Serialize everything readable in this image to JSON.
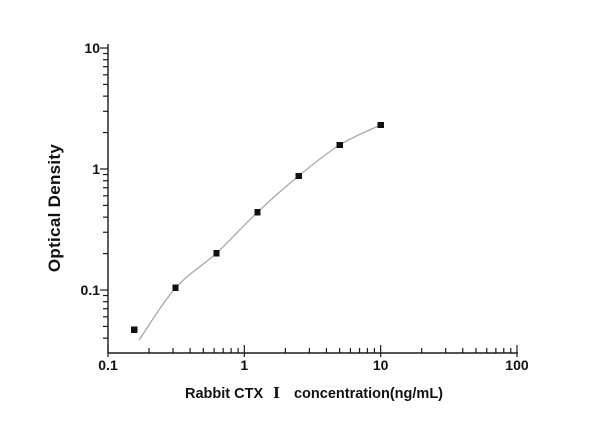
{
  "chart_data": {
    "type": "scatter",
    "description": "ELISA standard curve with fitted line on log-log axes",
    "title": "",
    "ylabel": "Optical Density",
    "xlabel_full": "Rabbit CTX Ⅰ  concentration(ng/mL)",
    "xlabel_parts": {
      "prefix": "Rabbit CTX",
      "numeral": "Ⅰ",
      "suffix": "concentration(ng/mL)"
    },
    "x_scale": "log",
    "y_scale": "log",
    "xlim": [
      0.1,
      100
    ],
    "ylim": [
      0.031,
      10
    ],
    "x_tick_values": [
      0.1,
      1,
      10,
      100
    ],
    "x_tick_labels": [
      "0.1",
      "1",
      "10",
      "100"
    ],
    "y_tick_values": [
      0.1,
      1,
      10
    ],
    "y_tick_labels": [
      "0.1",
      "1",
      "10"
    ],
    "grid": false,
    "legend": "none",
    "series": [
      {
        "name": "standards",
        "marker": "filled-square",
        "x": [
          0.156,
          0.3125,
          0.625,
          1.25,
          2.5,
          5,
          10
        ],
        "y": [
          0.047,
          0.104,
          0.202,
          0.44,
          0.875,
          1.58,
          2.31
        ]
      }
    ],
    "fit_curve": {
      "x": [
        0.169,
        0.3125,
        0.625,
        1.25,
        2.5,
        5,
        10
      ],
      "y": [
        0.0386,
        0.104,
        0.202,
        0.44,
        0.875,
        1.58,
        2.31
      ]
    },
    "colors": {
      "marker": "#111111",
      "curve": "#a9a9a9",
      "axis": "#1a1a1a",
      "text": "#111111",
      "background": "#ffffff"
    }
  }
}
